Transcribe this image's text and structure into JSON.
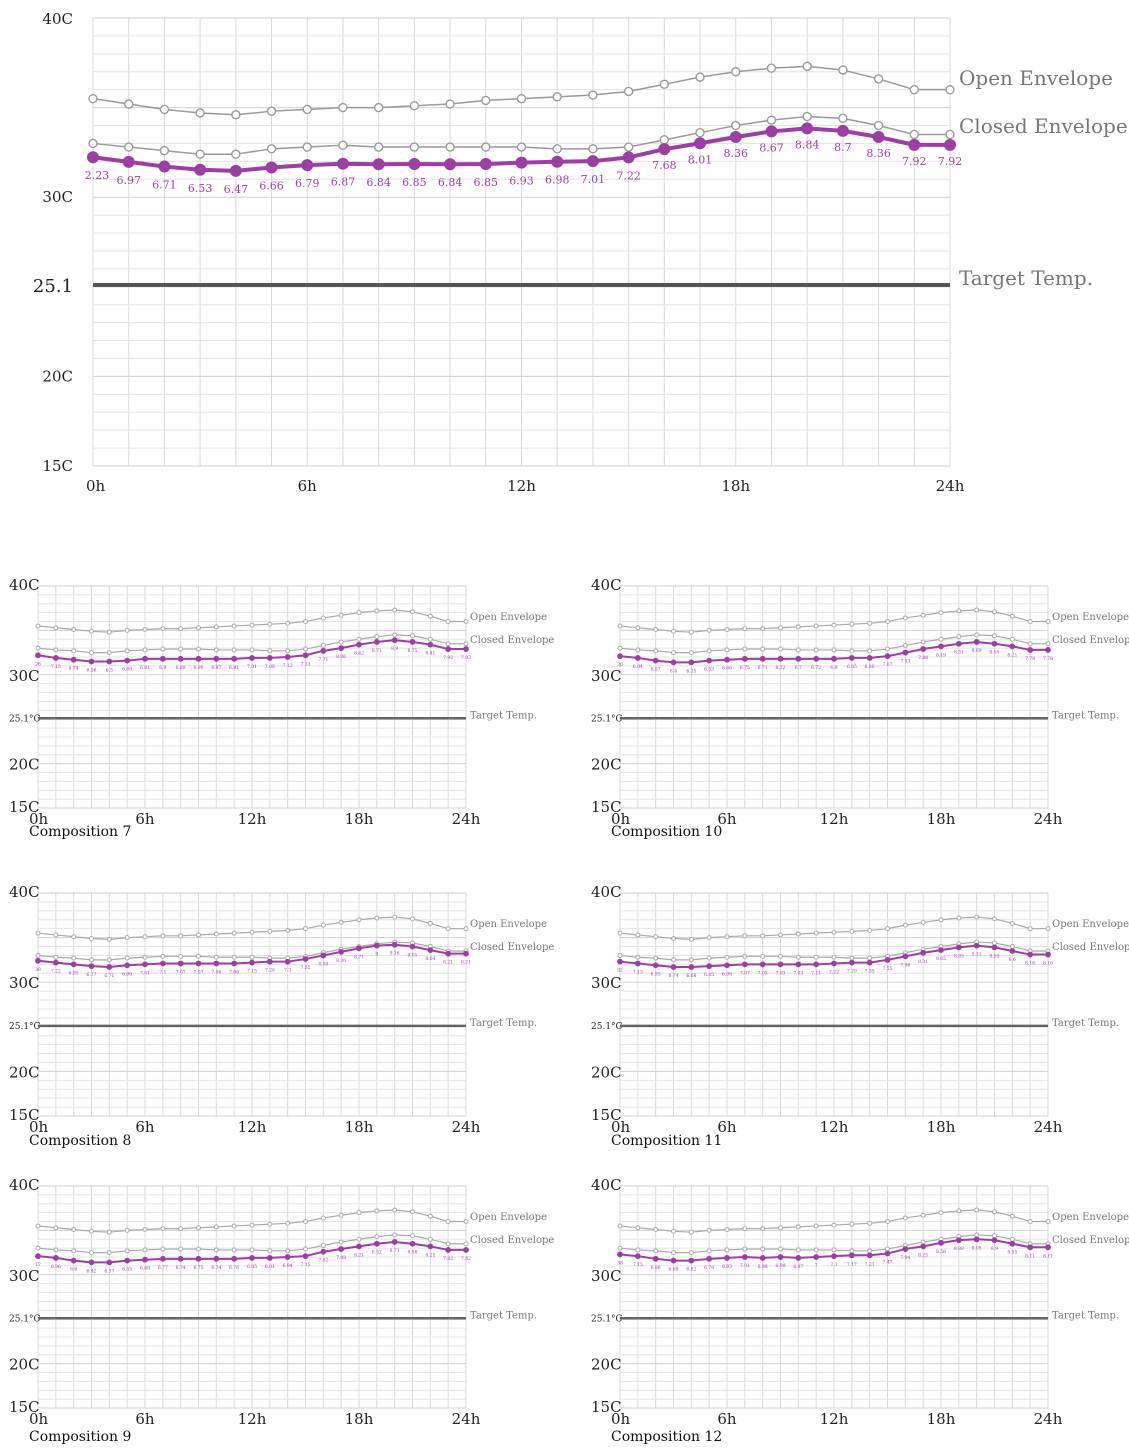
{
  "chart_data": [
    {
      "id": "main",
      "type": "line",
      "title": "",
      "caption": "",
      "xlim": [
        0,
        24
      ],
      "ylim": [
        15,
        40
      ],
      "x_ticks": [
        "0h",
        "6h",
        "12h",
        "18h",
        "24h"
      ],
      "y_ticks": [
        "15C",
        "20C",
        "25.1",
        "30C",
        "40C"
      ],
      "grid": true,
      "series": [
        {
          "name": "Open Envelope",
          "color": "#9a9a9a",
          "values": [
            35.5,
            35.2,
            34.9,
            34.7,
            34.6,
            34.8,
            34.9,
            35.0,
            35.0,
            35.1,
            35.2,
            35.4,
            35.5,
            35.6,
            35.7,
            35.9,
            36.3,
            36.7,
            37.0,
            37.2,
            37.3,
            37.1,
            36.6,
            36.0,
            36.0
          ]
        },
        {
          "name": "Closed Envelope",
          "color": "#9a9a9a",
          "values": [
            33.0,
            32.8,
            32.6,
            32.4,
            32.4,
            32.7,
            32.8,
            32.9,
            32.8,
            32.8,
            32.8,
            32.8,
            32.8,
            32.7,
            32.7,
            32.8,
            33.2,
            33.6,
            34.0,
            34.3,
            34.5,
            34.4,
            34.0,
            33.5,
            33.5
          ]
        },
        {
          "name": "",
          "color": "#9b3fa2",
          "values": [
            32.23,
            31.97,
            31.71,
            31.53,
            31.47,
            31.66,
            31.79,
            31.87,
            31.84,
            31.85,
            31.84,
            31.85,
            31.93,
            31.98,
            32.01,
            32.22,
            32.68,
            33.01,
            33.36,
            33.67,
            33.84,
            33.7,
            33.36,
            32.92,
            32.92
          ]
        }
      ],
      "data_labels": [
        "2.23",
        "6.97",
        "6.71",
        "6.53",
        "6.47",
        "6.66",
        "6.79",
        "6.87",
        "6.84",
        "6.85",
        "6.84",
        "6.85",
        "6.93",
        "6.98",
        "7.01",
        "7.22",
        "7.68",
        "8.01",
        "8.36",
        "8.67",
        "8.84",
        "8.7",
        "8.36",
        "7.92",
        "7.92"
      ],
      "target": {
        "name": "Target Temp.",
        "value": 25.1,
        "color": "#555555"
      }
    },
    {
      "id": "c7",
      "type": "line",
      "caption": "Composition 7",
      "xlim": [
        0,
        24
      ],
      "ylim": [
        15,
        40
      ],
      "x_ticks": [
        "0h",
        "6h",
        "12h",
        "18h",
        "24h"
      ],
      "y_ticks": [
        "15C",
        "20C",
        "25.1°C",
        "30C",
        "40C"
      ],
      "grid": true,
      "series": [
        {
          "name": "Open Envelope",
          "color": "#aaaaaa",
          "values": [
            35.5,
            35.3,
            35.1,
            34.9,
            34.8,
            35.0,
            35.1,
            35.2,
            35.2,
            35.3,
            35.4,
            35.5,
            35.6,
            35.7,
            35.8,
            36.0,
            36.4,
            36.7,
            37.0,
            37.2,
            37.3,
            37.1,
            36.6,
            36.0,
            36.0
          ]
        },
        {
          "name": "Closed Envelope",
          "color": "#aaaaaa",
          "values": [
            33.0,
            32.8,
            32.7,
            32.5,
            32.5,
            32.7,
            32.8,
            32.9,
            32.9,
            32.9,
            32.8,
            32.8,
            32.8,
            32.7,
            32.7,
            32.9,
            33.3,
            33.7,
            34.0,
            34.3,
            34.5,
            34.4,
            34.0,
            33.5,
            33.5
          ]
        },
        {
          "name": "",
          "color": "#9b3fa2",
          "values": [
            32.2,
            31.9,
            31.7,
            31.5,
            31.5,
            31.6,
            31.8,
            31.8,
            31.8,
            31.8,
            31.8,
            31.8,
            31.9,
            31.9,
            32.0,
            32.2,
            32.7,
            33.0,
            33.4,
            33.7,
            33.9,
            33.7,
            33.4,
            32.9,
            32.9
          ]
        }
      ],
      "data_labels": [
        "26",
        "7.15",
        "6.74",
        "6.56",
        "6.5",
        "6.60",
        "6.81",
        "6.9",
        "6.88",
        "6.90",
        "6.87",
        "6.91",
        "7.01",
        "7.08",
        "7.12",
        "7.33",
        "7.71",
        "8.06",
        "8.42",
        "8.71",
        "8.9",
        "8.75",
        "8.41",
        "7.92",
        "7.93"
      ],
      "target": {
        "name": "Target Temp.",
        "value": 25.1,
        "color": "#666666"
      }
    },
    {
      "id": "c10",
      "type": "line",
      "caption": "Composition 10",
      "xlim": [
        0,
        24
      ],
      "ylim": [
        15,
        40
      ],
      "x_ticks": [
        "0h",
        "6h",
        "12h",
        "18h",
        "24h"
      ],
      "y_ticks": [
        "15C",
        "20C",
        "25.1°C",
        "30C",
        "40C"
      ],
      "grid": true,
      "series": [
        {
          "name": "Open Envelope",
          "color": "#aaaaaa",
          "values": [
            35.5,
            35.3,
            35.1,
            34.9,
            34.8,
            35.0,
            35.1,
            35.2,
            35.2,
            35.3,
            35.4,
            35.5,
            35.6,
            35.7,
            35.8,
            36.0,
            36.4,
            36.7,
            37.0,
            37.2,
            37.3,
            37.1,
            36.6,
            36.0,
            36.0
          ]
        },
        {
          "name": "Closed Envelope",
          "color": "#aaaaaa",
          "values": [
            33.0,
            32.8,
            32.7,
            32.5,
            32.5,
            32.7,
            32.8,
            32.9,
            32.9,
            32.9,
            32.8,
            32.8,
            32.8,
            32.7,
            32.7,
            32.9,
            33.3,
            33.7,
            34.0,
            34.3,
            34.5,
            34.4,
            34.0,
            33.5,
            33.5
          ]
        },
        {
          "name": "",
          "color": "#9b3fa2",
          "values": [
            32.1,
            31.9,
            31.6,
            31.4,
            31.4,
            31.6,
            31.7,
            31.8,
            31.8,
            31.8,
            31.8,
            31.8,
            31.8,
            31.9,
            31.9,
            32.1,
            32.5,
            32.9,
            33.2,
            33.5,
            33.7,
            33.5,
            33.2,
            32.8,
            32.8
          ]
        }
      ],
      "data_labels": [
        "30",
        "6.94",
        "6.57",
        "6.4",
        "6.35",
        "6.53",
        "6.66",
        "6.75",
        "6.71",
        "6.72",
        "6.7",
        "6.72",
        "6.8",
        "6.85",
        "6.86",
        "7.07",
        "7.53",
        "7.88",
        "8.19",
        "8.51",
        "8.69",
        "8.55",
        "8.21",
        "7.78",
        "7.78"
      ],
      "target": {
        "name": "Target Temp.",
        "value": 25.1,
        "color": "#666666"
      }
    },
    {
      "id": "c8",
      "type": "line",
      "caption": "Composition 8",
      "xlim": [
        0,
        24
      ],
      "ylim": [
        15,
        40
      ],
      "x_ticks": [
        "0h",
        "6h",
        "12h",
        "18h",
        "24h"
      ],
      "y_ticks": [
        "15C",
        "20C",
        "25.1°C",
        "30C",
        "40C"
      ],
      "grid": true,
      "series": [
        {
          "name": "Open Envelope",
          "color": "#aaaaaa",
          "values": [
            35.5,
            35.3,
            35.1,
            34.9,
            34.8,
            35.0,
            35.1,
            35.2,
            35.2,
            35.3,
            35.4,
            35.5,
            35.6,
            35.7,
            35.8,
            36.0,
            36.4,
            36.7,
            37.0,
            37.2,
            37.3,
            37.1,
            36.6,
            36.0,
            36.0
          ]
        },
        {
          "name": "Closed Envelope",
          "color": "#aaaaaa",
          "values": [
            33.0,
            32.8,
            32.7,
            32.5,
            32.5,
            32.7,
            32.8,
            32.9,
            32.9,
            32.9,
            32.8,
            32.8,
            32.8,
            32.7,
            32.7,
            32.9,
            33.3,
            33.7,
            34.0,
            34.3,
            34.5,
            34.4,
            34.0,
            33.5,
            33.5
          ]
        },
        {
          "name": "",
          "color": "#9b3fa2",
          "values": [
            32.4,
            32.2,
            32.0,
            31.8,
            31.7,
            31.9,
            32.0,
            32.1,
            32.1,
            32.1,
            32.1,
            32.1,
            32.2,
            32.3,
            32.3,
            32.6,
            33.0,
            33.4,
            33.8,
            34.1,
            34.2,
            34.0,
            33.6,
            33.2,
            33.2
          ]
        }
      ],
      "data_labels": [
        "38",
        "7.22",
        "6.95",
        "6.77",
        "6.71",
        "6.90",
        "7.01",
        "7.1",
        "7.07",
        "7.07",
        "7.06",
        "7.06",
        "7.15",
        "7.26",
        "7.3",
        "7.55",
        "8.00",
        "8.30",
        "8.71",
        "9",
        "9.16",
        "9.01",
        "8.64",
        "8.21",
        "8.21"
      ],
      "target": {
        "name": "Target Temp.",
        "value": 25.1,
        "color": "#666666"
      }
    },
    {
      "id": "c11",
      "type": "line",
      "caption": "Composition 11",
      "xlim": [
        0,
        24
      ],
      "ylim": [
        15,
        40
      ],
      "x_ticks": [
        "0h",
        "6h",
        "12h",
        "18h",
        "24h"
      ],
      "y_ticks": [
        "15C",
        "20C",
        "25.1°C",
        "30C",
        "40C"
      ],
      "grid": true,
      "series": [
        {
          "name": "Open Envelope",
          "color": "#aaaaaa",
          "values": [
            35.5,
            35.3,
            35.1,
            34.9,
            34.8,
            35.0,
            35.1,
            35.2,
            35.2,
            35.3,
            35.4,
            35.5,
            35.6,
            35.7,
            35.8,
            36.0,
            36.4,
            36.7,
            37.0,
            37.2,
            37.3,
            37.1,
            36.6,
            36.0,
            36.0
          ]
        },
        {
          "name": "Closed Envelope",
          "color": "#aaaaaa",
          "values": [
            33.0,
            32.8,
            32.7,
            32.5,
            32.5,
            32.7,
            32.8,
            32.9,
            32.9,
            32.9,
            32.8,
            32.8,
            32.8,
            32.7,
            32.7,
            32.9,
            33.3,
            33.7,
            34.0,
            34.3,
            34.5,
            34.4,
            34.0,
            33.5,
            33.5
          ]
        },
        {
          "name": "",
          "color": "#9b3fa2",
          "values": [
            32.3,
            32.1,
            31.9,
            31.7,
            31.7,
            31.8,
            31.9,
            32.0,
            32.0,
            32.0,
            32.0,
            32.0,
            32.1,
            32.2,
            32.2,
            32.5,
            32.9,
            33.3,
            33.6,
            33.9,
            34.1,
            33.9,
            33.5,
            33.1,
            33.1
          ]
        }
      ],
      "data_labels": [
        "32",
        "7.15",
        "6.93",
        "6.74",
        "6.68",
        "6.85",
        "6.98",
        "7.07",
        "7.05",
        "7.03",
        "7.03",
        "7.11",
        "7.22",
        "7.29",
        "7.35",
        "7.55",
        "7.96",
        "8.31",
        "8.65",
        "8.95",
        "9.11",
        "8.95",
        "8.6",
        "8.16",
        "8.16"
      ],
      "target": {
        "name": "Target Temp.",
        "value": 25.1,
        "color": "#666666"
      }
    },
    {
      "id": "c9",
      "type": "line",
      "caption": "Composition 9",
      "xlim": [
        0,
        24
      ],
      "ylim": [
        15,
        40
      ],
      "x_ticks": [
        "0h",
        "6h",
        "12h",
        "18h",
        "24h"
      ],
      "y_ticks": [
        "15C",
        "20C",
        "25.1°C",
        "30C",
        "40C"
      ],
      "grid": true,
      "series": [
        {
          "name": "Open Envelope",
          "color": "#aaaaaa",
          "values": [
            35.5,
            35.3,
            35.1,
            34.9,
            34.8,
            35.0,
            35.1,
            35.2,
            35.2,
            35.3,
            35.4,
            35.5,
            35.6,
            35.7,
            35.8,
            36.0,
            36.4,
            36.7,
            37.0,
            37.2,
            37.3,
            37.1,
            36.6,
            36.0,
            36.0
          ]
        },
        {
          "name": "Closed Envelope",
          "color": "#aaaaaa",
          "values": [
            33.0,
            32.8,
            32.7,
            32.5,
            32.5,
            32.7,
            32.8,
            32.9,
            32.9,
            32.9,
            32.8,
            32.8,
            32.8,
            32.7,
            32.7,
            32.9,
            33.3,
            33.7,
            34.0,
            34.3,
            34.5,
            34.4,
            34.0,
            33.5,
            33.5
          ]
        },
        {
          "name": "",
          "color": "#9b3fa2",
          "values": [
            32.1,
            31.9,
            31.6,
            31.4,
            31.4,
            31.6,
            31.7,
            31.8,
            31.8,
            31.8,
            31.8,
            31.8,
            31.9,
            31.9,
            32.0,
            32.1,
            32.6,
            32.9,
            33.2,
            33.5,
            33.7,
            33.5,
            33.2,
            32.8,
            32.8
          ]
        }
      ],
      "data_labels": [
        "17",
        "6.96",
        "6.6",
        "6.42",
        "6.37",
        "6.55",
        "6.68",
        "6.77",
        "6.74",
        "6.75",
        "6.74",
        "6.76",
        "6.85",
        "6.91",
        "6.94",
        "7.15",
        "7.52",
        "7.88",
        "8.21",
        "8.52",
        "8.71",
        "8.58",
        "8.25",
        "7.82",
        "7.82"
      ],
      "target": {
        "name": "Target Temp.",
        "value": 25.1,
        "color": "#666666"
      }
    },
    {
      "id": "c12",
      "type": "line",
      "caption": "Composition 12",
      "xlim": [
        0,
        24
      ],
      "ylim": [
        15,
        40
      ],
      "x_ticks": [
        "0h",
        "6h",
        "12h",
        "18h",
        "24h"
      ],
      "y_ticks": [
        "15C",
        "20C",
        "25.1°C",
        "30C",
        "40C"
      ],
      "grid": true,
      "series": [
        {
          "name": "Open Envelope",
          "color": "#aaaaaa",
          "values": [
            35.5,
            35.3,
            35.1,
            34.9,
            34.8,
            35.0,
            35.1,
            35.2,
            35.2,
            35.3,
            35.4,
            35.5,
            35.6,
            35.7,
            35.8,
            36.0,
            36.4,
            36.7,
            37.0,
            37.2,
            37.3,
            37.1,
            36.6,
            36.0,
            36.0
          ]
        },
        {
          "name": "Closed Envelope",
          "color": "#aaaaaa",
          "values": [
            33.0,
            32.8,
            32.7,
            32.5,
            32.5,
            32.7,
            32.8,
            32.9,
            32.9,
            32.9,
            32.8,
            32.8,
            32.8,
            32.7,
            32.7,
            32.9,
            33.3,
            33.7,
            34.0,
            34.3,
            34.5,
            34.4,
            34.0,
            33.5,
            33.5
          ]
        },
        {
          "name": "",
          "color": "#9b3fa2",
          "values": [
            32.3,
            32.1,
            31.8,
            31.6,
            31.6,
            31.8,
            31.9,
            32.0,
            31.9,
            32.0,
            31.9,
            32.0,
            32.1,
            32.2,
            32.2,
            32.4,
            32.9,
            33.2,
            33.6,
            33.9,
            34.0,
            33.9,
            33.5,
            33.1,
            33.1
          ]
        }
      ],
      "data_labels": [
        "38",
        "7.15",
        "6.86",
        "6.68",
        "6.62",
        "6.79",
        "6.93",
        "7.01",
        "6.98",
        "6.99",
        "6.97",
        "7",
        "7.1",
        "7.17",
        "7.21",
        "7.47",
        "7.94",
        "8.25",
        "8.58",
        "8.88",
        "9.05",
        "8.9",
        "8.55",
        "8.11",
        "8.11"
      ],
      "target": {
        "name": "Target Temp.",
        "value": 25.1,
        "color": "#666666"
      }
    }
  ]
}
